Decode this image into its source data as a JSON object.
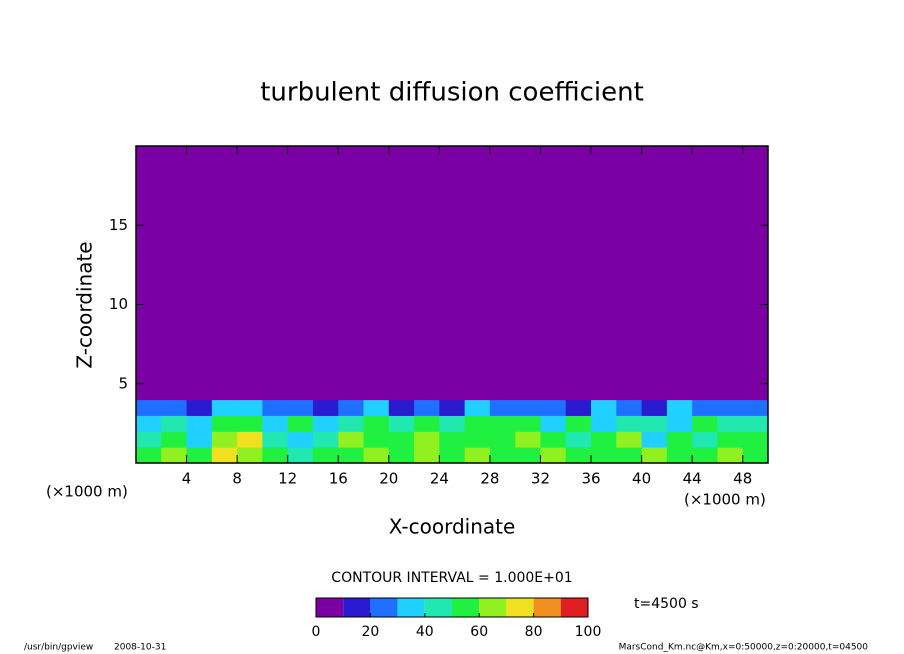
{
  "chart_data": {
    "type": "contour",
    "title": "turbulent diffusion coefficient",
    "xlabel": "X-coordinate",
    "ylabel": "Z-coordinate",
    "x_unit": "(×1000 m)",
    "y_unit": "(×1000 m)",
    "xlim": [
      0,
      50
    ],
    "ylim": [
      0,
      20
    ],
    "xticks": [
      4,
      8,
      12,
      16,
      20,
      24,
      28,
      32,
      36,
      40,
      44,
      48
    ],
    "yticks": [
      5,
      10,
      15
    ],
    "xbins": [
      0,
      2,
      4,
      6,
      8,
      10,
      12,
      14,
      16,
      18,
      20,
      22,
      24,
      26,
      28,
      30,
      32,
      34,
      36,
      38,
      40,
      42,
      44,
      46,
      48,
      50
    ],
    "ybins": [
      0,
      1,
      2,
      3,
      4,
      20
    ],
    "z": [
      [
        55,
        62,
        58,
        75,
        60,
        55,
        45,
        52,
        58,
        62,
        55,
        60,
        58,
        65,
        55,
        58,
        60,
        55,
        50,
        58,
        62,
        55,
        58,
        60,
        55
      ],
      [
        45,
        55,
        35,
        60,
        72,
        48,
        35,
        40,
        60,
        55,
        58,
        62,
        55,
        55,
        58,
        60,
        55,
        40,
        58,
        62,
        35,
        55,
        45,
        58,
        50
      ],
      [
        35,
        45,
        30,
        58,
        55,
        35,
        55,
        30,
        45,
        52,
        40,
        55,
        48,
        58,
        55,
        50,
        30,
        55,
        35,
        45,
        40,
        30,
        50,
        45,
        40
      ],
      [
        20,
        25,
        15,
        35,
        30,
        20,
        25,
        15,
        25,
        30,
        15,
        28,
        15,
        30,
        25,
        20,
        25,
        15,
        35,
        20,
        12,
        30,
        25,
        20,
        25
      ],
      [
        5,
        5,
        5,
        5,
        5,
        5,
        5,
        5,
        5,
        5,
        5,
        5,
        5,
        5,
        5,
        5,
        5,
        5,
        5,
        5,
        5,
        5,
        5,
        5,
        5
      ]
    ],
    "levels": [
      0,
      10,
      20,
      30,
      40,
      50,
      60,
      70,
      80,
      90,
      100
    ],
    "colors": [
      "#7a00a4",
      "#2a1ad0",
      "#2070ff",
      "#20d0ff",
      "#20e8b0",
      "#20f040",
      "#90f020",
      "#f0e020",
      "#f09020",
      "#e02020"
    ],
    "colorbar_ticks": [
      0,
      20,
      40,
      60,
      80,
      100
    ],
    "contour_interval_label": "CONTOUR INTERVAL = 1.000E+01",
    "time_label": "t=4500 s"
  },
  "footer": {
    "program": "/usr/bin/gpview",
    "date": "2008-10-31",
    "source": "MarsCond_Km.nc@Km,x=0:50000,z=0:20000,t=04500"
  }
}
